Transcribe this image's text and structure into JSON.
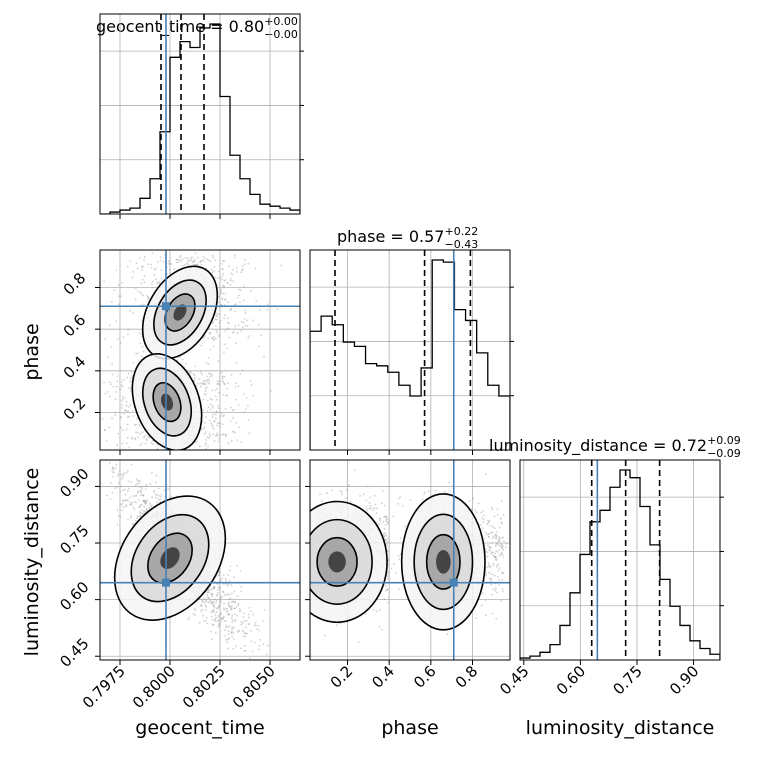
{
  "chart_data": {
    "type": "corner",
    "parameters": [
      "geocent_time",
      "phase",
      "luminosity_distance"
    ],
    "titles": [
      {
        "param": "geocent_time",
        "median": "0.80",
        "plus": "+0.00",
        "minus": "−0.00"
      },
      {
        "param": "phase",
        "median": "0.57",
        "plus": "+0.22",
        "minus": "−0.43"
      },
      {
        "param": "luminosity_distance",
        "median": "0.72",
        "plus": "+0.09",
        "minus": "−0.09"
      }
    ],
    "ranges": {
      "geocent_time": [
        0.7965,
        0.8065
      ],
      "phase": [
        0.02,
        0.98
      ],
      "luminosity_distance": [
        0.44,
        0.97
      ]
    },
    "ticks": {
      "geocent_time": [
        0.7975,
        0.8,
        0.8025,
        0.805
      ],
      "geocent_time_labels": [
        "0.7975",
        "0.8000",
        "0.8025",
        "0.8050"
      ],
      "phase": [
        0.2,
        0.4,
        0.6,
        0.8
      ],
      "phase_labels": [
        "0.2",
        "0.4",
        "0.6",
        "0.8"
      ],
      "luminosity_distance": [
        0.45,
        0.6,
        0.75,
        0.9
      ],
      "luminosity_distance_labels": [
        "0.45",
        "0.60",
        "0.75",
        "0.90"
      ]
    },
    "truths": {
      "geocent_time": 0.7998,
      "phase": 0.71,
      "luminosity_distance": 0.645
    },
    "quantiles": {
      "geocent_time": [
        0.79955,
        0.80055,
        0.8017
      ],
      "phase": [
        0.14,
        0.57,
        0.79
      ],
      "luminosity_distance": [
        0.63,
        0.72,
        0.81
      ]
    },
    "histograms": {
      "geocent_time": {
        "range": [
          0.7965,
          0.8065
        ],
        "counts": [
          0,
          1,
          2,
          3,
          8,
          18,
          42,
          80,
          88,
          85,
          95,
          97,
          60,
          30,
          18,
          10,
          5,
          4,
          3,
          2
        ]
      },
      "phase": {
        "range": [
          0.02,
          0.98
        ],
        "counts": [
          55,
          62,
          58,
          50,
          48,
          40,
          39,
          36,
          30,
          25,
          38,
          88,
          87,
          65,
          60,
          45,
          30,
          25
        ]
      },
      "luminosity_distance": {
        "range": [
          0.44,
          0.97
        ],
        "counts": [
          1,
          2,
          4,
          8,
          18,
          35,
          55,
          72,
          78,
          90,
          99,
          95,
          80,
          60,
          42,
          28,
          18,
          10,
          6,
          3
        ]
      }
    },
    "grid": true,
    "colors": {
      "line": "#000000",
      "truth": "#4682b4",
      "scatter": "#9a9a9a"
    }
  }
}
